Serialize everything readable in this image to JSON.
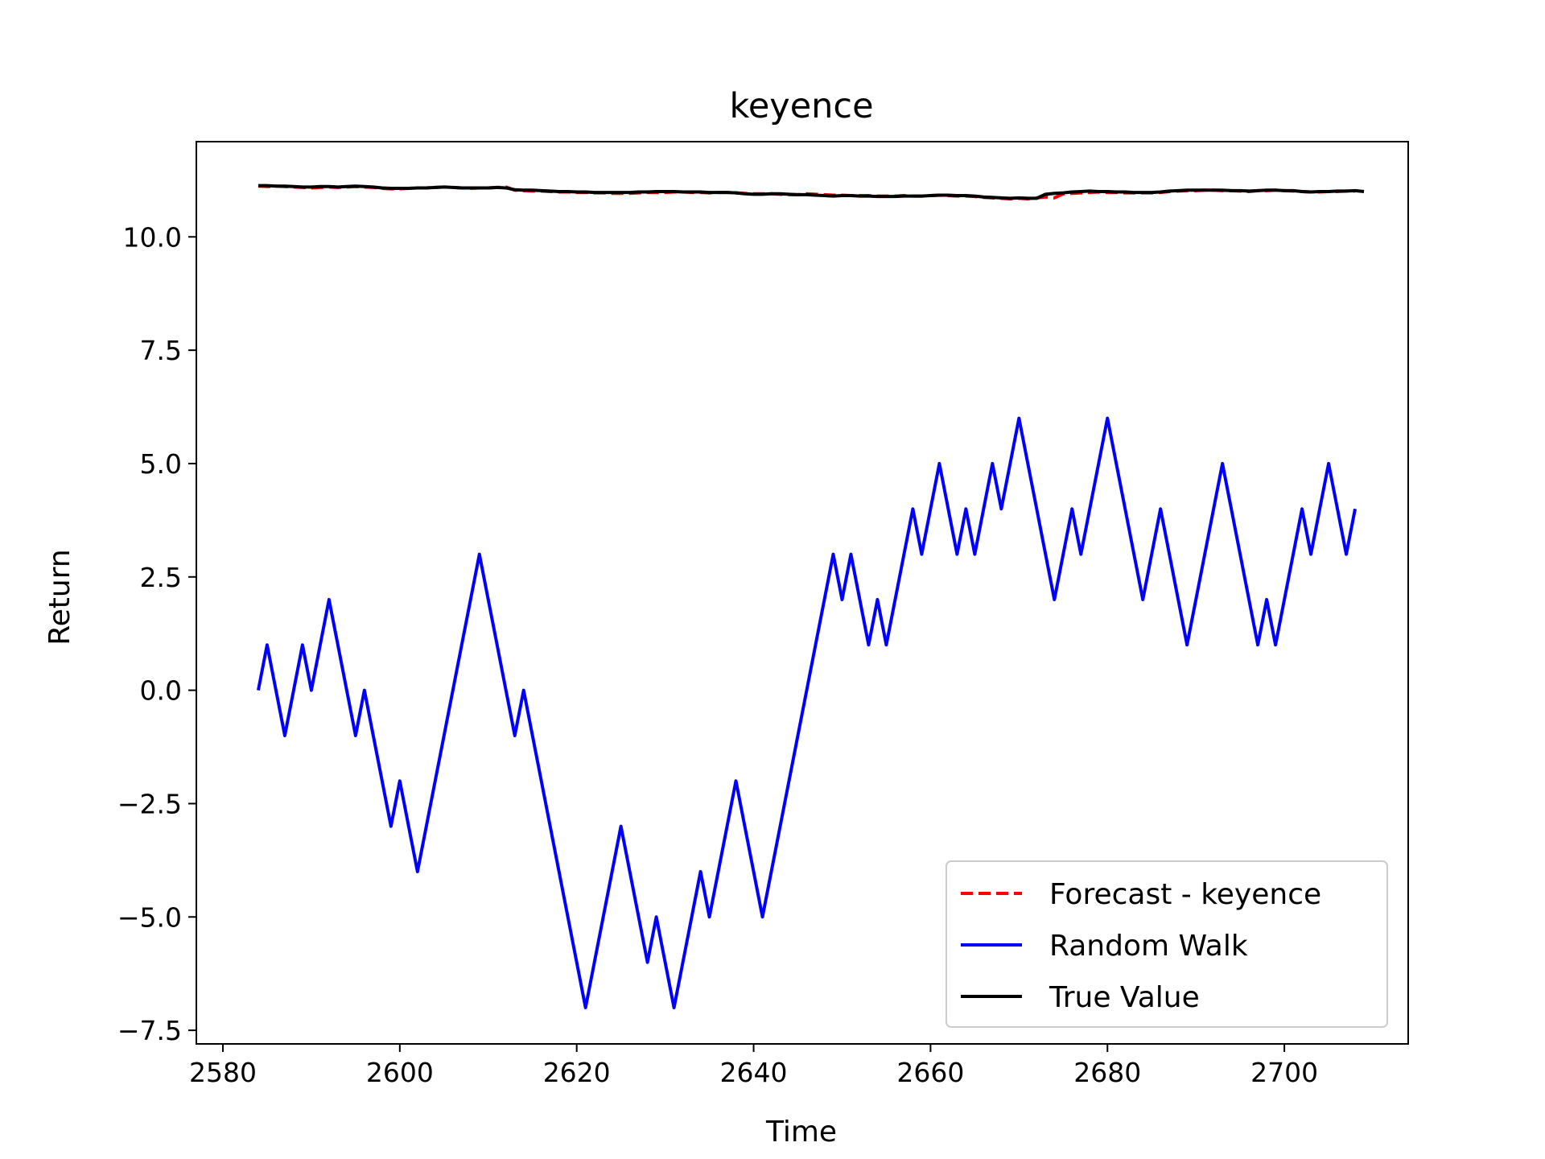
{
  "chart_data": {
    "type": "line",
    "title": "keyence",
    "xlabel": "Time",
    "ylabel": "Return",
    "xlim": [
      2577,
      2714
    ],
    "ylim": [
      -7.8,
      12.1
    ],
    "xticks": [
      2580,
      2600,
      2620,
      2640,
      2660,
      2680,
      2700
    ],
    "yticks": [
      -7.5,
      -5.0,
      -2.5,
      0.0,
      2.5,
      5.0,
      7.5,
      10.0
    ],
    "ytick_labels": [
      "−7.5",
      "−5.0",
      "−2.5",
      "0.0",
      "2.5",
      "5.0",
      "7.5",
      "10.0"
    ],
    "grid": false,
    "legend_position": "lower-right",
    "x_start": 2584,
    "series": [
      {
        "name": "Forecast - keyence",
        "color": "#ff0000",
        "style": "dashed",
        "values": [
          11.12,
          11.11,
          11.12,
          11.11,
          11.1,
          11.09,
          11.08,
          11.09,
          11.1,
          11.09,
          11.1,
          11.11,
          11.1,
          11.09,
          11.07,
          11.06,
          11.06,
          11.07,
          11.08,
          11.08,
          11.09,
          11.1,
          11.09,
          11.08,
          11.07,
          11.08,
          11.08,
          11.09,
          11.1,
          11.03,
          11.02,
          11.01,
          11.01,
          11.0,
          10.99,
          10.99,
          10.98,
          10.98,
          10.97,
          10.97,
          10.96,
          10.96,
          10.96,
          10.97,
          10.98,
          10.98,
          10.98,
          10.99,
          10.99,
          10.98,
          10.98,
          10.97,
          10.98,
          10.98,
          10.97,
          10.96,
          10.95,
          10.95,
          10.95,
          10.94,
          10.93,
          10.93,
          10.95,
          10.94,
          10.93,
          10.92,
          10.92,
          10.91,
          10.91,
          10.91,
          10.9,
          10.9,
          10.9,
          10.91,
          10.9,
          10.9,
          10.91,
          10.92,
          10.91,
          10.9,
          10.9,
          10.89,
          10.87,
          10.86,
          10.85,
          10.84,
          10.85,
          10.84,
          10.86,
          10.88,
          10.86,
          10.95,
          10.96,
          10.97,
          10.98,
          10.99,
          10.98,
          10.98,
          10.97,
          10.97,
          10.97,
          10.97,
          10.98,
          11.0,
          11.01,
          11.02,
          11.02,
          11.03,
          11.03,
          11.02,
          11.02,
          11.01,
          11.0,
          11.02,
          11.02,
          11.03,
          11.02,
          11.01,
          11.0,
          10.99,
          10.99,
          11.0,
          11.0,
          11.01,
          11.01
        ]
      },
      {
        "name": "Random Walk",
        "color": "#0000ff",
        "style": "solid",
        "values": [
          0,
          1,
          0,
          -1,
          0,
          1,
          0,
          1,
          2,
          1,
          0,
          -1,
          0,
          -1,
          -2,
          -3,
          -2,
          -3,
          -4,
          -3,
          -2,
          -1,
          0,
          1,
          2,
          3,
          2,
          1,
          0,
          -1,
          0,
          -1,
          -2,
          -3,
          -4,
          -5,
          -6,
          -7,
          -6,
          -5,
          -4,
          -3,
          -4,
          -5,
          -6,
          -5,
          -6,
          -7,
          -6,
          -5,
          -4,
          -5,
          -4,
          -3,
          -2,
          -3,
          -4,
          -5,
          -4,
          -3,
          -2,
          -1,
          0,
          1,
          2,
          3,
          2,
          3,
          2,
          1,
          2,
          1,
          2,
          3,
          4,
          3,
          4,
          5,
          4,
          3,
          4,
          3,
          4,
          5,
          4,
          5,
          6,
          5,
          4,
          3,
          2,
          3,
          4,
          3,
          4,
          5,
          6,
          5,
          4,
          3,
          2,
          3,
          4,
          3,
          2,
          1,
          2,
          3,
          4,
          5,
          4,
          3,
          2,
          1,
          2,
          1,
          2,
          3,
          4,
          3,
          4,
          5,
          4,
          3,
          4
        ]
      },
      {
        "name": "True Value",
        "color": "#000000",
        "style": "solid",
        "values": [
          11.13,
          11.13,
          11.12,
          11.12,
          11.11,
          11.1,
          11.1,
          11.11,
          11.11,
          11.1,
          11.11,
          11.12,
          11.11,
          11.1,
          11.08,
          11.07,
          11.07,
          11.07,
          11.08,
          11.08,
          11.09,
          11.1,
          11.09,
          11.08,
          11.08,
          11.08,
          11.08,
          11.09,
          11.08,
          11.04,
          11.03,
          11.03,
          11.02,
          11.01,
          11.0,
          11.0,
          10.99,
          10.99,
          10.98,
          10.98,
          10.98,
          10.98,
          10.98,
          10.99,
          10.99,
          11.0,
          11.0,
          11.0,
          10.99,
          10.99,
          10.99,
          10.98,
          10.98,
          10.98,
          10.97,
          10.95,
          10.94,
          10.94,
          10.95,
          10.95,
          10.94,
          10.93,
          10.93,
          10.92,
          10.91,
          10.9,
          10.91,
          10.91,
          10.9,
          10.9,
          10.89,
          10.89,
          10.89,
          10.9,
          10.9,
          10.9,
          10.91,
          10.92,
          10.92,
          10.91,
          10.91,
          10.9,
          10.88,
          10.87,
          10.86,
          10.85,
          10.86,
          10.85,
          10.85,
          10.94,
          10.96,
          10.97,
          10.99,
          11.0,
          11.01,
          11.0,
          11.0,
          10.99,
          10.99,
          10.98,
          10.98,
          10.98,
          10.99,
          11.01,
          11.02,
          11.03,
          11.03,
          11.03,
          11.03,
          11.03,
          11.02,
          11.02,
          11.01,
          11.02,
          11.03,
          11.03,
          11.02,
          11.02,
          11.0,
          10.99,
          11.0,
          11.0,
          11.01,
          11.01,
          11.02,
          11.0
        ]
      }
    ]
  }
}
